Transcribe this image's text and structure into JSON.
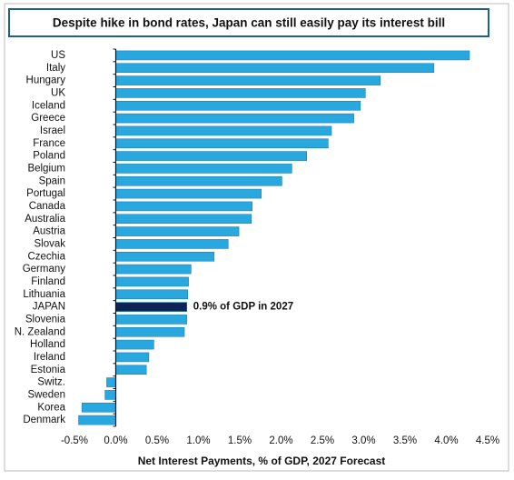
{
  "chart_data": {
    "type": "hbar",
    "title": "Despite hike in bond rates, Japan can still easily pay its interest bill",
    "x_label": "Net Interest Payments, % of GDP, 2027 Forecast",
    "annotation": "0.9% of GDP in 2027",
    "categories": [
      "US",
      "Italy",
      "Hungary",
      "UK",
      "Iceland",
      "Greece",
      "Israel",
      "France",
      "Poland",
      "Belgium",
      "Spain",
      "Portugal",
      "Canada",
      "Australia",
      "Austria",
      "Slovak",
      "Czechia",
      "Germany",
      "Finland",
      "Lithuania",
      "JAPAN",
      "Slovenia",
      "N. Zealand",
      "Holland",
      "Ireland",
      "Estonia",
      "Switz.",
      "Sweden",
      "Korea",
      "Denmark"
    ],
    "values": [
      4.28,
      3.85,
      3.2,
      3.02,
      2.96,
      2.88,
      2.61,
      2.57,
      2.31,
      2.13,
      2.01,
      1.76,
      1.65,
      1.64,
      1.49,
      1.36,
      1.19,
      0.91,
      0.88,
      0.87,
      0.86,
      0.86,
      0.83,
      0.46,
      0.4,
      0.37,
      -0.11,
      -0.13,
      -0.41,
      -0.45
    ],
    "colors": [
      "#29a8e0",
      "#29a8e0",
      "#29a8e0",
      "#29a8e0",
      "#29a8e0",
      "#29a8e0",
      "#29a8e0",
      "#29a8e0",
      "#29a8e0",
      "#29a8e0",
      "#29a8e0",
      "#29a8e0",
      "#29a8e0",
      "#29a8e0",
      "#29a8e0",
      "#29a8e0",
      "#29a8e0",
      "#29a8e0",
      "#29a8e0",
      "#29a8e0",
      "#0e2454",
      "#29a8e0",
      "#29a8e0",
      "#29a8e0",
      "#29a8e0",
      "#29a8e0",
      "#29a8e0",
      "#29a8e0",
      "#29a8e0",
      "#29a8e0"
    ],
    "xlim": [
      -0.5,
      4.5
    ],
    "xticks": [
      {
        "value": -0.5,
        "label": "-0.5%"
      },
      {
        "value": 0,
        "label": "0.0%"
      },
      {
        "value": 0.5,
        "label": "0.5%"
      },
      {
        "value": 1,
        "label": "1.0%"
      },
      {
        "value": 1.5,
        "label": "1.5%"
      },
      {
        "value": 2,
        "label": "2.0%"
      },
      {
        "value": 2.5,
        "label": "2.5%"
      },
      {
        "value": 3,
        "label": "3.0%"
      },
      {
        "value": 3.5,
        "label": "3.5%"
      },
      {
        "value": 4,
        "label": "4.0%"
      },
      {
        "value": 4.5,
        "label": "4.5%"
      }
    ]
  }
}
